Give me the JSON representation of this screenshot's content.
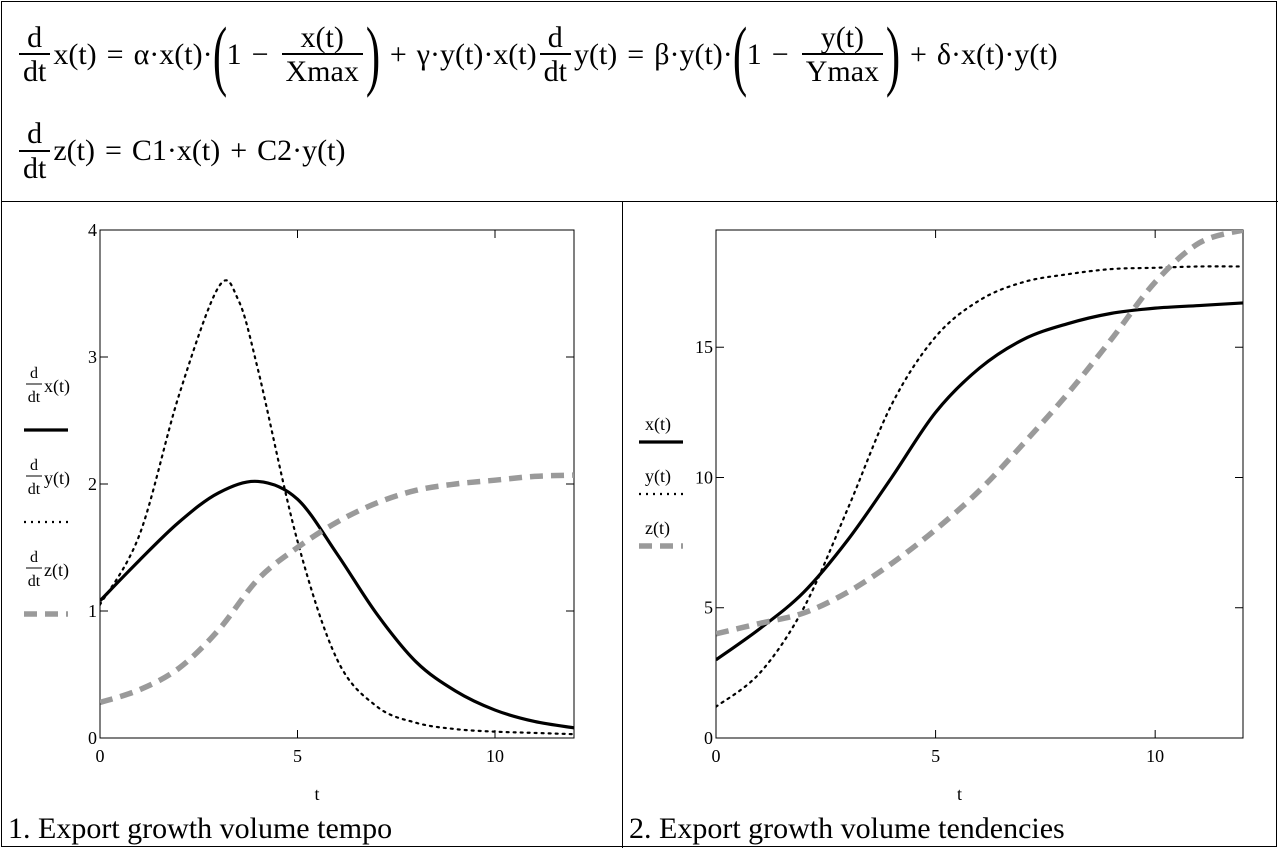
{
  "equations": {
    "eq1": {
      "lhs_num": "d",
      "lhs_den": "dt",
      "lhs_fn": "x(t)",
      "eq": "=",
      "term1": "α·x(t)·",
      "one": "1",
      "minus": "−",
      "frac_num": "x(t)",
      "frac_den": "Xmax",
      "plus": "+",
      "term2": "γ·y(t)·x(t)"
    },
    "eq2": {
      "lhs_num": "d",
      "lhs_den": "dt",
      "lhs_fn": "y(t)",
      "eq": "=",
      "term1": "β·y(t)·",
      "one": "1",
      "minus": "−",
      "frac_num": "y(t)",
      "frac_den": "Ymax",
      "plus": "+",
      "term2": "δ·x(t)·y(t)"
    },
    "eq3": {
      "lhs_num": "d",
      "lhs_den": "dt",
      "lhs_fn": "z(t)",
      "eq": "=",
      "term1": "C1·x(t)",
      "plus": "+",
      "term2": "C2·y(t)"
    }
  },
  "chart_data": [
    {
      "type": "line",
      "caption": "1. Export growth volume tempo",
      "xlabel": "t",
      "xlim": [
        0,
        12
      ],
      "ylim": [
        0,
        4
      ],
      "xticks": [
        0,
        5,
        10
      ],
      "yticks": [
        0,
        1,
        2,
        3,
        4
      ],
      "grid": false,
      "legend_position": "left",
      "legend": [
        {
          "top": "d",
          "bottom": "dt",
          "fn": "x(t)",
          "style": "solid"
        },
        {
          "top": "d",
          "bottom": "dt",
          "fn": "y(t)",
          "style": "dotted"
        },
        {
          "top": "d",
          "bottom": "dt",
          "fn": "z(t)",
          "style": "dashed"
        }
      ],
      "series": [
        {
          "style": "solid",
          "x": [
            0,
            1,
            2,
            3,
            4,
            5,
            6,
            7,
            8,
            9,
            10,
            11,
            12
          ],
          "y": [
            1.08,
            1.4,
            1.7,
            1.93,
            2.02,
            1.88,
            1.45,
            0.98,
            0.6,
            0.37,
            0.22,
            0.13,
            0.08
          ]
        },
        {
          "style": "dotted",
          "x": [
            0,
            1,
            2,
            3,
            3.5,
            4,
            5,
            6,
            7,
            8,
            9,
            10,
            11,
            12
          ],
          "y": [
            1.05,
            1.6,
            2.7,
            3.55,
            3.45,
            2.9,
            1.55,
            0.62,
            0.25,
            0.12,
            0.07,
            0.05,
            0.04,
            0.03
          ]
        },
        {
          "style": "dashed",
          "x": [
            0,
            1,
            2,
            3,
            4,
            5,
            6,
            7,
            8,
            9,
            10,
            11,
            12
          ],
          "y": [
            0.28,
            0.38,
            0.55,
            0.85,
            1.25,
            1.5,
            1.7,
            1.85,
            1.95,
            2.0,
            2.03,
            2.06,
            2.07
          ]
        }
      ]
    },
    {
      "type": "line",
      "caption": "2. Export growth volume tendencies",
      "xlabel": "t",
      "xlim": [
        0,
        12
      ],
      "ylim": [
        0,
        19.5
      ],
      "xticks": [
        0,
        5,
        10
      ],
      "yticks": [
        0,
        5,
        10,
        15
      ],
      "grid": false,
      "legend_position": "left",
      "legend": [
        {
          "fn": "x(t)",
          "style": "solid"
        },
        {
          "fn": "y(t)",
          "style": "dotted"
        },
        {
          "fn": "z(t)",
          "style": "dashed"
        }
      ],
      "series": [
        {
          "style": "solid",
          "x": [
            0,
            1,
            2,
            3,
            4,
            5,
            6,
            7,
            8,
            9,
            10,
            11,
            12
          ],
          "y": [
            3.0,
            4.2,
            5.6,
            7.6,
            10.0,
            12.5,
            14.2,
            15.3,
            15.9,
            16.3,
            16.5,
            16.6,
            16.7
          ]
        },
        {
          "style": "dotted",
          "x": [
            0,
            1,
            2,
            3,
            4,
            5,
            6,
            7,
            8,
            9,
            10,
            11,
            12
          ],
          "y": [
            1.2,
            2.5,
            5.0,
            8.8,
            12.8,
            15.4,
            16.8,
            17.5,
            17.8,
            18.0,
            18.05,
            18.1,
            18.1
          ]
        },
        {
          "style": "dashed",
          "x": [
            0,
            1,
            2,
            3,
            4,
            5,
            6,
            7,
            8,
            9,
            10,
            11,
            12
          ],
          "y": [
            4.0,
            4.4,
            4.8,
            5.6,
            6.7,
            8.0,
            9.5,
            11.3,
            13.2,
            15.3,
            17.5,
            19.0,
            19.5
          ]
        }
      ]
    }
  ]
}
